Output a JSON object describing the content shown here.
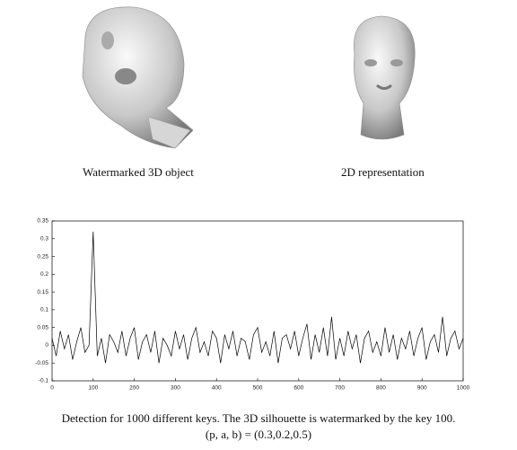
{
  "figure": {
    "left_label": "Watermarked 3D object",
    "right_label": "2D representation"
  },
  "chart_data": {
    "type": "line",
    "color": "#000000",
    "x": [
      0,
      10,
      20,
      30,
      40,
      50,
      60,
      70,
      80,
      90,
      100,
      110,
      120,
      130,
      140,
      150,
      160,
      170,
      180,
      190,
      200,
      210,
      220,
      230,
      240,
      250,
      260,
      270,
      280,
      290,
      300,
      310,
      320,
      330,
      340,
      350,
      360,
      370,
      380,
      390,
      400,
      410,
      420,
      430,
      440,
      450,
      460,
      470,
      480,
      490,
      500,
      510,
      520,
      530,
      540,
      550,
      560,
      570,
      580,
      590,
      600,
      610,
      620,
      630,
      640,
      650,
      660,
      670,
      680,
      690,
      700,
      710,
      720,
      730,
      740,
      750,
      760,
      770,
      780,
      790,
      800,
      810,
      820,
      830,
      840,
      850,
      860,
      870,
      880,
      890,
      900,
      910,
      920,
      930,
      940,
      950,
      960,
      970,
      980,
      990,
      1000
    ],
    "values": [
      0.02,
      -0.03,
      0.04,
      -0.01,
      0.03,
      -0.04,
      0.01,
      0.05,
      -0.02,
      0.0,
      0.32,
      -0.03,
      0.02,
      -0.05,
      0.03,
      0.01,
      -0.02,
      0.04,
      -0.03,
      0.02,
      0.05,
      -0.04,
      0.01,
      0.03,
      -0.02,
      0.04,
      -0.05,
      0.02,
      0.0,
      -0.03,
      0.04,
      -0.01,
      0.03,
      -0.04,
      0.02,
      0.05,
      -0.02,
      0.01,
      -0.03,
      0.04,
      0.02,
      -0.05,
      0.03,
      -0.01,
      0.04,
      -0.03,
      0.02,
      0.01,
      -0.04,
      0.03,
      0.05,
      -0.02,
      0.01,
      -0.03,
      0.04,
      -0.05,
      0.02,
      0.03,
      -0.01,
      0.04,
      -0.03,
      0.02,
      0.06,
      -0.04,
      0.03,
      -0.02,
      0.05,
      -0.03,
      0.08,
      -0.04,
      0.02,
      -0.03,
      0.04,
      -0.01,
      0.03,
      -0.05,
      0.02,
      0.04,
      -0.02,
      0.01,
      -0.03,
      0.05,
      -0.02,
      0.03,
      -0.04,
      0.02,
      -0.01,
      0.04,
      -0.03,
      0.02,
      0.05,
      -0.04,
      0.01,
      0.03,
      -0.02,
      0.08,
      -0.03,
      0.02,
      0.04,
      -0.01,
      0.02
    ],
    "xlim": [
      0,
      1000
    ],
    "xticks": [
      0,
      100,
      200,
      300,
      400,
      500,
      600,
      700,
      800,
      900,
      1000
    ],
    "ylim": [
      -0.1,
      0.35
    ],
    "yticks": [
      -0.1,
      -0.05,
      0,
      0.05,
      0.1,
      0.15,
      0.2,
      0.25,
      0.3,
      0.35
    ]
  },
  "caption": {
    "line1": "Detection for 1000 different keys. The 3D silhouette is watermarked by the key 100.",
    "line2": "(p, a, b) = (0.3,0.2,0.5)"
  }
}
